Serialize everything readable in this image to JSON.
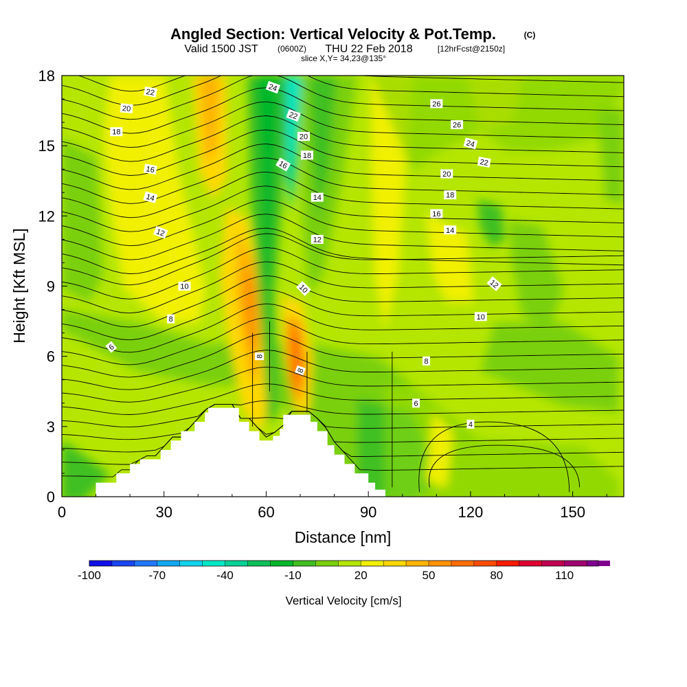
{
  "title": {
    "main": "Angled Section: Vertical Velocity & Pot.Temp.",
    "unit_tag": "(C)",
    "line2_a": "Valid 1500 JST",
    "line2_b": "(0600Z)",
    "line2_c": "THU 22 Feb 2018",
    "line2_d": "[12hrFcst@2150z]",
    "line3": "slice X,Y= 34,23@135°"
  },
  "chart_data": {
    "type": "heatmap",
    "xlabel": "Distance [nm]",
    "ylabel": "Height [Kft MSL]",
    "xlim": [
      0,
      165
    ],
    "ylim": [
      0,
      18
    ],
    "x_ticks": [
      "0",
      "30",
      "60",
      "90",
      "120",
      "150"
    ],
    "y_ticks": [
      "0",
      "3",
      "6",
      "9",
      "12",
      "15",
      "18"
    ],
    "colorbar": {
      "label": "Vertical Velocity [cm/s]",
      "tick_labels": [
        "-100",
        "-70",
        "-40",
        "-10",
        "20",
        "50",
        "80",
        "110"
      ],
      "tick_values": [
        -100,
        -70,
        -40,
        -10,
        20,
        50,
        80,
        110
      ],
      "min": -100,
      "max": 125,
      "step": 10,
      "colors": [
        "#1010e8",
        "#1a46f2",
        "#1f78fa",
        "#10a8f4",
        "#10d4ec",
        "#00e8c8",
        "#00d296",
        "#0cc05a",
        "#00b82a",
        "#40c020",
        "#7ad00a",
        "#b4e600",
        "#f0f000",
        "#ffd800",
        "#ffb400",
        "#ff9200",
        "#ff6e00",
        "#ff4c00",
        "#f81c00",
        "#e00030",
        "#c00050",
        "#a00070",
        "#800090"
      ]
    },
    "terrain_kft": [
      [
        0,
        0
      ],
      [
        10,
        0.6
      ],
      [
        16,
        1
      ],
      [
        20,
        1.4
      ],
      [
        23,
        1.6
      ],
      [
        29,
        2
      ],
      [
        32,
        2.4
      ],
      [
        35,
        2.8
      ],
      [
        39,
        3.2
      ],
      [
        42,
        3.6
      ],
      [
        43,
        3.8
      ],
      [
        50,
        3.8
      ],
      [
        52,
        3.2
      ],
      [
        55,
        2.8
      ],
      [
        58,
        2.4
      ],
      [
        62,
        2.6
      ],
      [
        64,
        2.9
      ],
      [
        65,
        3.5
      ],
      [
        71,
        3.5
      ],
      [
        73,
        3.2
      ],
      [
        75,
        2.8
      ],
      [
        78,
        2.2
      ],
      [
        80,
        1.8
      ],
      [
        83,
        1.4
      ],
      [
        86,
        1
      ],
      [
        90,
        0.6
      ],
      [
        92,
        0.3
      ],
      [
        95,
        0
      ]
    ],
    "theta_contour_labels": [
      {
        "text": "22",
        "x": 26,
        "y": 17.3,
        "rot": 10
      },
      {
        "text": "20",
        "x": 19,
        "y": 16.6,
        "rot": 5
      },
      {
        "text": "18",
        "x": 16,
        "y": 15.6,
        "rot": 0
      },
      {
        "text": "16",
        "x": 26,
        "y": 14.0,
        "rot": 10
      },
      {
        "text": "14",
        "x": 26,
        "y": 12.8,
        "rot": 15
      },
      {
        "text": "12",
        "x": 29,
        "y": 11.3,
        "rot": 20
      },
      {
        "text": "10",
        "x": 36,
        "y": 9.0,
        "rot": 0
      },
      {
        "text": "8",
        "x": 32,
        "y": 7.6,
        "rot": 0
      },
      {
        "text": "6",
        "x": 14.5,
        "y": 6.4,
        "rot": -40
      },
      {
        "text": "24",
        "x": 62,
        "y": 17.5,
        "rot": 20
      },
      {
        "text": "22",
        "x": 68,
        "y": 16.3,
        "rot": 20
      },
      {
        "text": "20",
        "x": 71,
        "y": 15.4,
        "rot": 0
      },
      {
        "text": "18",
        "x": 72,
        "y": 14.6,
        "rot": 0
      },
      {
        "text": "16",
        "x": 65,
        "y": 14.2,
        "rot": 30
      },
      {
        "text": "14",
        "x": 75,
        "y": 12.8,
        "rot": 0
      },
      {
        "text": "12",
        "x": 75,
        "y": 11.0,
        "rot": 0
      },
      {
        "text": "10",
        "x": 71,
        "y": 8.9,
        "rot": 45
      },
      {
        "text": "8",
        "x": 58,
        "y": 6.0,
        "rot": -90
      },
      {
        "text": "8",
        "x": 70,
        "y": 5.4,
        "rot": -70
      },
      {
        "text": "26",
        "x": 110,
        "y": 16.8,
        "rot": 0
      },
      {
        "text": "26",
        "x": 116,
        "y": 15.9,
        "rot": 0
      },
      {
        "text": "24",
        "x": 120,
        "y": 15.1,
        "rot": 15
      },
      {
        "text": "22",
        "x": 124,
        "y": 14.3,
        "rot": 10
      },
      {
        "text": "20",
        "x": 113,
        "y": 13.8,
        "rot": 0
      },
      {
        "text": "18",
        "x": 114,
        "y": 12.9,
        "rot": 0
      },
      {
        "text": "16",
        "x": 110,
        "y": 12.1,
        "rot": 0
      },
      {
        "text": "14",
        "x": 114,
        "y": 11.4,
        "rot": 0
      },
      {
        "text": "12",
        "x": 127,
        "y": 9.1,
        "rot": 40
      },
      {
        "text": "10",
        "x": 123,
        "y": 7.7,
        "rot": 0
      },
      {
        "text": "8",
        "x": 107,
        "y": 5.8,
        "rot": 0
      },
      {
        "text": "6",
        "x": 104,
        "y": 4.0,
        "rot": 0
      },
      {
        "text": "4",
        "x": 120,
        "y": 3.1,
        "rot": 0
      }
    ]
  }
}
